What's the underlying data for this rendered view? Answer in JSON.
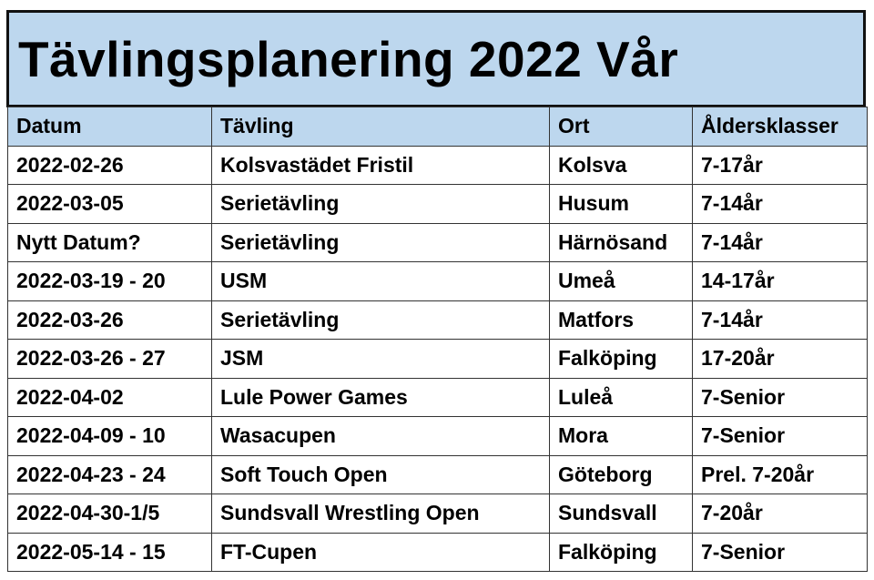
{
  "title": "Tävlingsplanering 2022 Vår",
  "colors": {
    "header_bg": "#bdd7ee",
    "border": "#333333"
  },
  "headers": [
    "Datum",
    "Tävling",
    "Ort",
    "Åldersklasser"
  ],
  "rows": [
    [
      "2022-02-26",
      "Kolsvastädet Fristil",
      "Kolsva",
      "7-17år"
    ],
    [
      "2022-03-05",
      "Serietävling",
      "Husum",
      "7-14år"
    ],
    [
      "Nytt Datum?",
      "Serietävling",
      "Härnösand",
      "7-14år"
    ],
    [
      "2022-03-19 - 20",
      "USM",
      "Umeå",
      "14-17år"
    ],
    [
      "2022-03-26",
      "Serietävling",
      "Matfors",
      "7-14år"
    ],
    [
      "2022-03-26 - 27",
      "JSM",
      "Falköping",
      "17-20år"
    ],
    [
      "2022-04-02",
      "Lule Power Games",
      "Luleå",
      "7-Senior"
    ],
    [
      "2022-04-09 - 10",
      "Wasacupen",
      "Mora",
      "7-Senior"
    ],
    [
      "2022-04-23 - 24",
      "Soft Touch Open",
      "Göteborg",
      "Prel. 7-20år"
    ],
    [
      "2022-04-30-1/5",
      "Sundsvall Wrestling Open",
      "Sundsvall",
      "7-20år"
    ],
    [
      "2022-05-14 - 15",
      "FT-Cupen",
      "Falköping",
      "7-Senior"
    ]
  ]
}
